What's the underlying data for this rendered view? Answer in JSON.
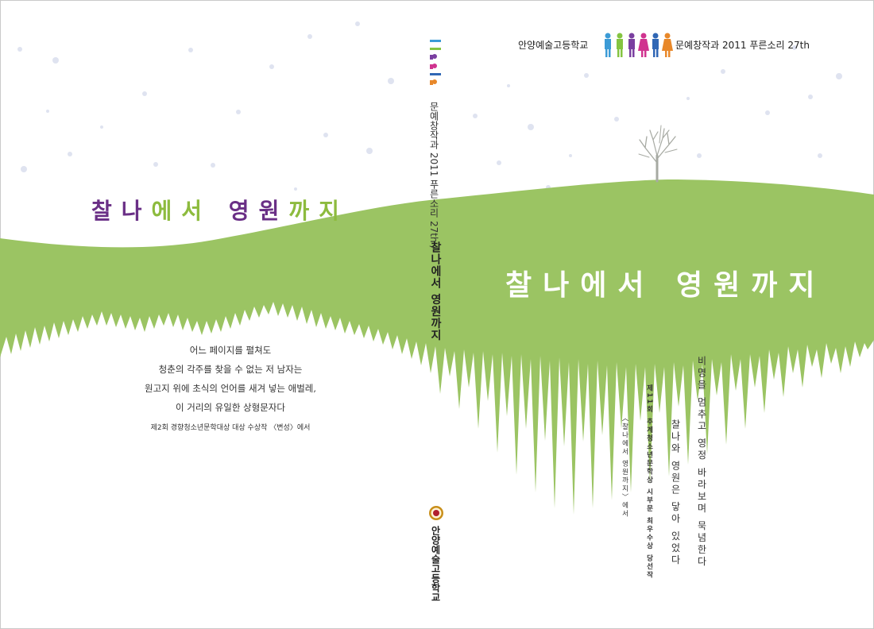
{
  "front": {
    "school": "안양예술고등학교",
    "series": "문예창작과 2011 푸른소리 27th",
    "title": "찰나에서  영원까지",
    "poem_line1": "비명을 멈추고 영정 바라보며 묵념한다",
    "poem_line2": "찰나와 영원은 닿아 있었다",
    "award_line": "제11회 추계청소년문학상 시부문 최우수상 당선작",
    "award_work": "〈찰나에서 영원까지〉에서"
  },
  "back": {
    "title_parts": [
      {
        "text": "찰나",
        "color": "#6a2f86"
      },
      {
        "text": "에서",
        "color": "#8dbb3e"
      },
      {
        "text": " 영원",
        "color": "#6a2f86"
      },
      {
        "text": "까지",
        "color": "#8dbb3e"
      }
    ],
    "blurb": [
      "어느 페이지를 펼쳐도",
      "청춘의 각주를 찾을 수 없는 저 남자는",
      "원고지 위에 초식의 언어를 새겨 넣는 애벌레,",
      "이 거리의 유일한 상형문자다"
    ],
    "note": "제2회 경향청소년문학대상 대상 수상작 〈변성〉에서"
  },
  "spine": {
    "series": "문예창작과 2011 푸른소리 27th /",
    "title": "찰나에서 영원까지",
    "school": "안양예술고등학교"
  },
  "colors": {
    "hill": "#9bc463",
    "hill_dark": "#86b24e",
    "purple": "#6a2f86",
    "green": "#8dbb3e",
    "snow": "#dfe3f0"
  },
  "icons": [
    "people-figures-icon",
    "tree-icon",
    "school-emblem-icon",
    "snow-dots"
  ]
}
